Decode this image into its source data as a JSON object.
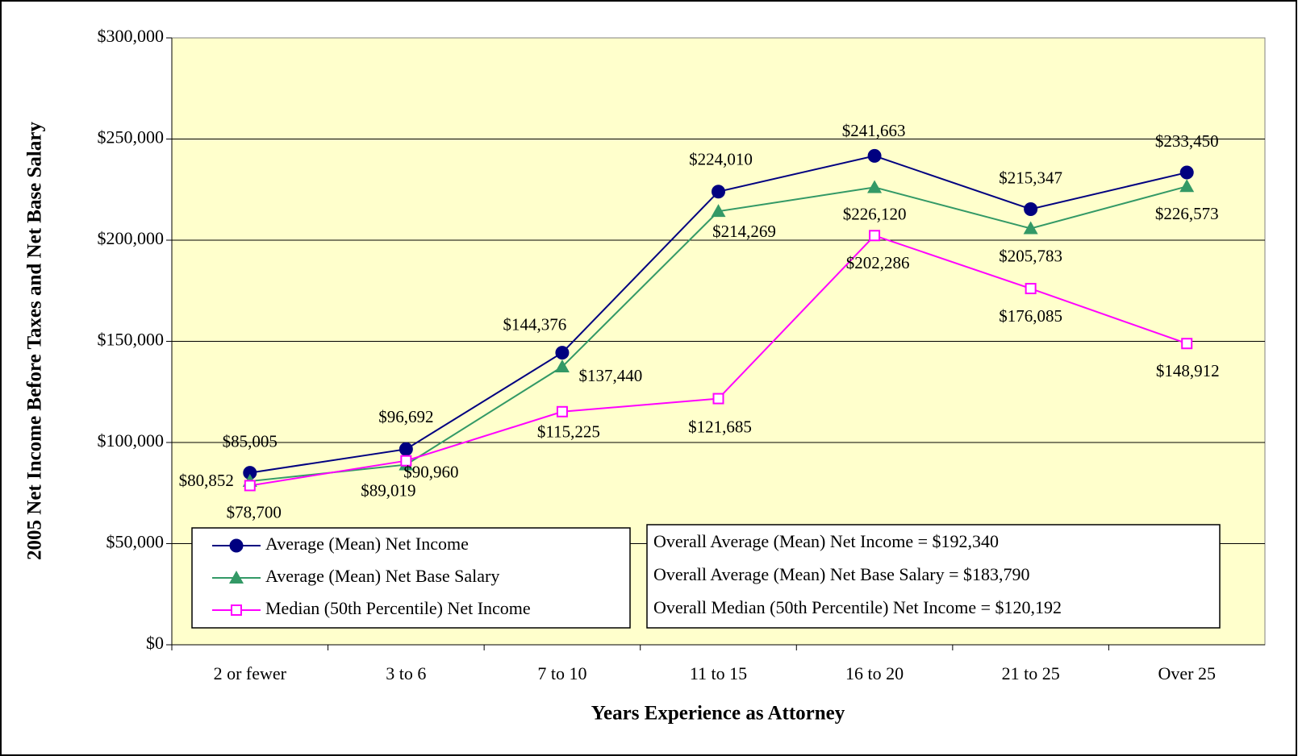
{
  "chart_data": {
    "type": "line",
    "xlabel": "Years Experience as Attorney",
    "ylabel": "2005 Net Income Before Taxes and Net Base Salary",
    "categories": [
      "2 or fewer",
      "3 to 6",
      "7 to 10",
      "11 to 15",
      "16 to 20",
      "21 to 25",
      "Over 25"
    ],
    "series": [
      {
        "name": "Average (Mean) Net Income",
        "color": "#000080",
        "marker": "circle",
        "values": [
          85005,
          96692,
          144376,
          224010,
          241663,
          215347,
          233450
        ],
        "value_labels": [
          "$85,005",
          "$96,692",
          "$144,376",
          "$224,010",
          "$241,663",
          "$215,347",
          "$233,450"
        ]
      },
      {
        "name": "Average (Mean) Net Base Salary",
        "color": "#339966",
        "marker": "triangle",
        "values": [
          80852,
          89019,
          137440,
          214269,
          226120,
          205783,
          226573
        ],
        "value_labels": [
          "$80,852",
          "$89,019",
          "$137,440",
          "$214,269",
          "$226,120",
          "$205,783",
          "$226,573"
        ]
      },
      {
        "name": "Median (50th Percentile) Net Income",
        "color": "#ff00ff",
        "marker": "square",
        "values": [
          78700,
          90960,
          115225,
          121685,
          202286,
          176085,
          148912
        ],
        "value_labels": [
          "$78,700",
          "$90,960",
          "$115,225",
          "$121,685",
          "$202,286",
          "$176,085",
          "$148,912"
        ]
      }
    ],
    "ylim": [
      0,
      300000
    ],
    "yticks": [
      {
        "value": 0,
        "label": "$0"
      },
      {
        "value": 50000,
        "label": "$50,000"
      },
      {
        "value": 100000,
        "label": "$100,000"
      },
      {
        "value": 150000,
        "label": "$150,000"
      },
      {
        "value": 200000,
        "label": "$200,000"
      },
      {
        "value": 250000,
        "label": "$250,000"
      },
      {
        "value": 300000,
        "label": "$300,000"
      }
    ],
    "grid": true,
    "legend": "lower left",
    "annotations": [
      "Overall Average (Mean) Net Income = $192,340",
      "Overall Average (Mean) Net Base Salary = $183,790",
      "Overall Median (50th Percentile) Net Income = $120,192"
    ]
  }
}
